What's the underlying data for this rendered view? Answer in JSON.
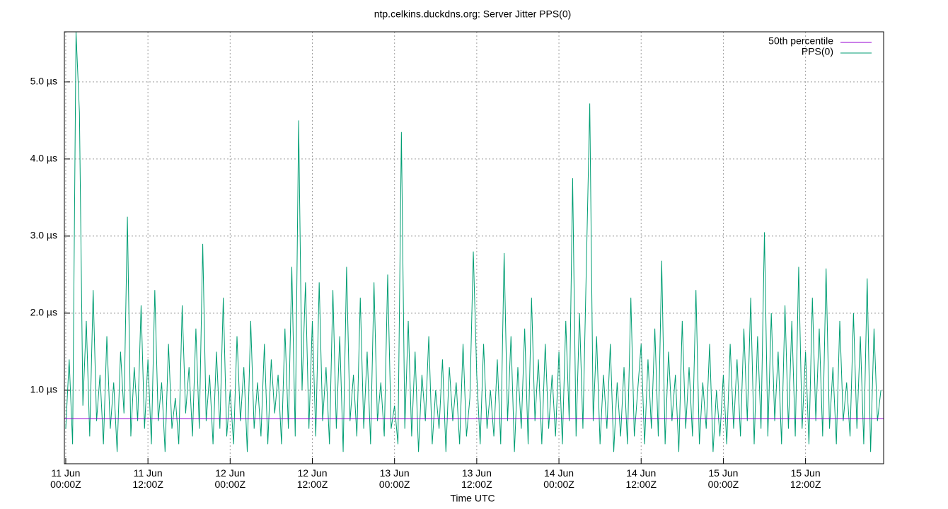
{
  "chart_data": {
    "type": "line",
    "title": "ntp.celkins.duckdns.org: Server Jitter PPS(0)",
    "x_label": "Time UTC",
    "xlim": [
      -0.2,
      119.4
    ],
    "ylim": [
      0.046,
      5.65
    ],
    "grid": true,
    "legend": "top-right",
    "xticks": [
      {
        "value": 0,
        "label": "11 Jun\n00:00Z"
      },
      {
        "value": 12,
        "label": "11 Jun\n12:00Z"
      },
      {
        "value": 24,
        "label": "12 Jun\n00:00Z"
      },
      {
        "value": 36,
        "label": "12 Jun\n12:00Z"
      },
      {
        "value": 48,
        "label": "13 Jun\n00:00Z"
      },
      {
        "value": 60,
        "label": "13 Jun\n12:00Z"
      },
      {
        "value": 72,
        "label": "14 Jun\n00:00Z"
      },
      {
        "value": 84,
        "label": "14 Jun\n12:00Z"
      },
      {
        "value": 96,
        "label": "15 Jun\n00:00Z"
      },
      {
        "value": 108,
        "label": "15 Jun\n12:00Z"
      }
    ],
    "yticks": [
      {
        "value": 1,
        "label": "1.0 µs"
      },
      {
        "value": 2,
        "label": "2.0 µs"
      },
      {
        "value": 3,
        "label": "3.0 µs"
      },
      {
        "value": 4,
        "label": "4.0 µs"
      },
      {
        "value": 5,
        "label": "5.0 µs"
      }
    ],
    "series": [
      {
        "name": "50th percentile",
        "color": "#9400d3",
        "x": [
          -0.2,
          119.4
        ],
        "values": [
          0.63,
          0.63
        ]
      },
      {
        "name": "PPS(0)",
        "color": "#009e73",
        "x": [
          0,
          0.5,
          1,
          1.5,
          2,
          2.5,
          3,
          3.5,
          4,
          4.5,
          5,
          5.5,
          6,
          6.5,
          7,
          7.5,
          8,
          8.5,
          9,
          9.5,
          10,
          10.5,
          11,
          11.5,
          12,
          12.5,
          13,
          13.5,
          14,
          14.5,
          15,
          15.5,
          16,
          16.5,
          17,
          17.5,
          18,
          18.5,
          19,
          19.5,
          20,
          20.5,
          21,
          21.5,
          22,
          22.5,
          23,
          23.5,
          24,
          24.5,
          25,
          25.5,
          26,
          26.5,
          27,
          27.5,
          28,
          28.5,
          29,
          29.5,
          30,
          30.5,
          31,
          31.5,
          32,
          32.5,
          33,
          33.5,
          34,
          34.5,
          35,
          35.5,
          36,
          36.5,
          37,
          37.5,
          38,
          38.5,
          39,
          39.5,
          40,
          40.5,
          41,
          41.5,
          42,
          42.5,
          43,
          43.5,
          44,
          44.5,
          45,
          45.5,
          46,
          46.5,
          47,
          47.5,
          48,
          48.5,
          49,
          49.5,
          50,
          50.5,
          51,
          51.5,
          52,
          52.5,
          53,
          53.5,
          54,
          54.5,
          55,
          55.5,
          56,
          56.5,
          57,
          57.5,
          58,
          58.5,
          59,
          59.5,
          60,
          60.5,
          61,
          61.5,
          62,
          62.5,
          63,
          63.5,
          64,
          64.5,
          65,
          65.5,
          66,
          66.5,
          67,
          67.5,
          68,
          68.5,
          69,
          69.5,
          70,
          70.5,
          71,
          71.5,
          72,
          72.5,
          73,
          73.5,
          74,
          74.5,
          75,
          75.5,
          76,
          76.5,
          77,
          77.5,
          78,
          78.5,
          79,
          79.5,
          80,
          80.5,
          81,
          81.5,
          82,
          82.5,
          83,
          83.5,
          84,
          84.5,
          85,
          85.5,
          86,
          86.5,
          87,
          87.5,
          88,
          88.5,
          89,
          89.5,
          90,
          90.5,
          91,
          91.5,
          92,
          92.5,
          93,
          93.5,
          94,
          94.5,
          95,
          95.5,
          96,
          96.5,
          97,
          97.5,
          98,
          98.5,
          99,
          99.5,
          100,
          100.5,
          101,
          101.5,
          102,
          102.5,
          103,
          103.5,
          104,
          104.5,
          105,
          105.5,
          106,
          106.5,
          107,
          107.5,
          108,
          108.5,
          109,
          109.5,
          110,
          110.5,
          111,
          111.5,
          112,
          112.5,
          113,
          113.5,
          114,
          114.5,
          115,
          115.5,
          116,
          116.5,
          117,
          117.5,
          118,
          118.5,
          119
        ],
        "values": [
          0.5,
          1.4,
          0.3,
          5.65,
          4.6,
          0.8,
          1.9,
          0.4,
          2.3,
          0.6,
          1.2,
          0.3,
          1.7,
          0.5,
          1.1,
          0.2,
          1.5,
          0.7,
          3.25,
          0.4,
          1.3,
          0.6,
          2.1,
          0.5,
          1.4,
          0.3,
          2.3,
          0.6,
          1.1,
          0.2,
          1.6,
          0.5,
          0.9,
          0.3,
          2.1,
          0.7,
          1.3,
          0.4,
          1.8,
          0.5,
          2.9,
          0.6,
          1.2,
          0.3,
          1.5,
          0.5,
          2.2,
          0.4,
          1.0,
          0.3,
          1.7,
          0.6,
          1.3,
          0.2,
          1.9,
          0.5,
          1.1,
          0.4,
          1.6,
          0.3,
          1.4,
          0.7,
          1.2,
          0.3,
          1.8,
          0.5,
          2.6,
          0.4,
          4.5,
          1.0,
          2.4,
          0.5,
          1.9,
          0.4,
          2.4,
          0.6,
          1.3,
          0.3,
          2.3,
          0.5,
          1.7,
          0.2,
          2.6,
          0.6,
          1.2,
          0.4,
          2.2,
          0.5,
          1.5,
          0.3,
          2.4,
          0.6,
          1.1,
          0.4,
          2.5,
          0.5,
          0.8,
          0.3,
          4.35,
          0.5,
          1.9,
          0.4,
          1.5,
          0.2,
          1.2,
          0.6,
          1.7,
          0.3,
          1.0,
          0.5,
          1.4,
          0.2,
          1.3,
          0.6,
          1.1,
          0.3,
          1.6,
          0.4,
          0.9,
          2.8,
          1.2,
          0.3,
          1.6,
          0.5,
          1.0,
          0.4,
          1.4,
          0.3,
          2.78,
          0.6,
          1.7,
          0.2,
          1.3,
          0.5,
          1.8,
          0.3,
          2.2,
          0.6,
          1.4,
          0.3,
          1.6,
          0.5,
          1.2,
          0.4,
          1.5,
          0.3,
          1.9,
          0.6,
          3.75,
          0.4,
          2.0,
          0.5,
          2.6,
          4.72,
          0.6,
          1.7,
          0.3,
          1.2,
          0.5,
          1.6,
          0.2,
          1.1,
          0.4,
          1.3,
          0.3,
          2.2,
          0.4,
          1.0,
          1.6,
          0.3,
          1.4,
          0.5,
          1.8,
          0.4,
          2.68,
          0.3,
          1.5,
          0.6,
          1.2,
          0.2,
          1.9,
          0.5,
          1.3,
          0.4,
          2.3,
          0.3,
          1.1,
          0.5,
          1.6,
          0.2,
          1.0,
          0.4,
          1.2,
          0.3,
          1.6,
          0.5,
          1.4,
          0.4,
          1.8,
          0.6,
          2.2,
          0.3,
          1.7,
          0.5,
          3.05,
          0.4,
          2.0,
          0.6,
          1.5,
          0.3,
          2.1,
          0.5,
          1.9,
          0.4,
          2.6,
          0.5,
          1.5,
          0.3,
          2.2,
          0.6,
          1.8,
          0.4,
          2.58,
          0.5,
          1.3,
          0.3,
          1.9,
          0.6,
          1.1,
          0.4,
          2.0,
          0.5,
          1.7,
          0.3,
          2.45,
          0.2,
          1.8,
          0.6,
          1.0
        ]
      }
    ]
  }
}
